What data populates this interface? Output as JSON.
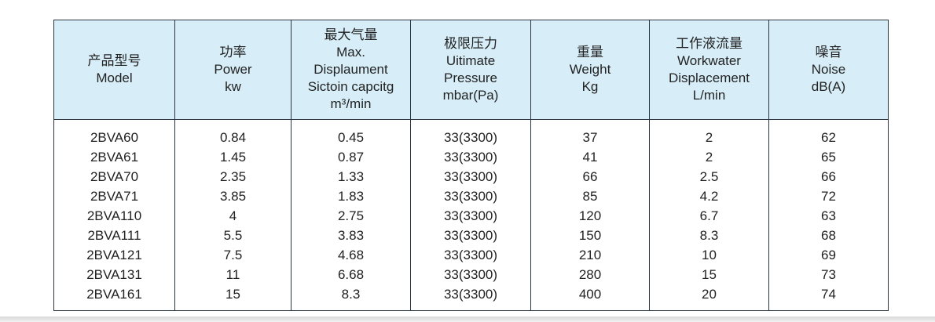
{
  "table": {
    "header": [
      [
        "产品型号",
        "Model"
      ],
      [
        "功率",
        "Power",
        "kw"
      ],
      [
        "最大气量",
        "Max.",
        "Displaument",
        "Sictoin capcitg",
        "m³/min"
      ],
      [
        "极限压力",
        "Uitimate",
        "Pressure",
        "mbar(Pa)"
      ],
      [
        "重量",
        "Weight",
        "Kg"
      ],
      [
        "工作液流量",
        "Workwater",
        "Displacement",
        "L/min"
      ],
      [
        "噪音",
        "Noise",
        "dB(A)"
      ]
    ],
    "rows": [
      [
        "2BVA60",
        0.84,
        0.45,
        "33(3300)",
        37,
        2,
        62
      ],
      [
        "2BVA61",
        1.45,
        0.87,
        "33(3300)",
        41,
        2,
        65
      ],
      [
        "2BVA70",
        2.35,
        1.33,
        "33(3300)",
        66,
        2.5,
        66
      ],
      [
        "2BVA71",
        3.85,
        1.83,
        "33(3300)",
        85,
        4.2,
        72
      ],
      [
        "2BVA110",
        4,
        2.75,
        "33(3300)",
        120,
        6.7,
        63
      ],
      [
        "2BVA111",
        5.5,
        3.83,
        "33(3300)",
        150,
        8.3,
        68
      ],
      [
        "2BVA121",
        7.5,
        4.68,
        "33(3300)",
        210,
        10,
        69
      ],
      [
        "2BVA131",
        11,
        6.68,
        "33(3300)",
        280,
        15,
        73
      ],
      [
        "2BVA161",
        15,
        8.3,
        "33(3300)",
        400,
        20,
        74
      ]
    ]
  }
}
